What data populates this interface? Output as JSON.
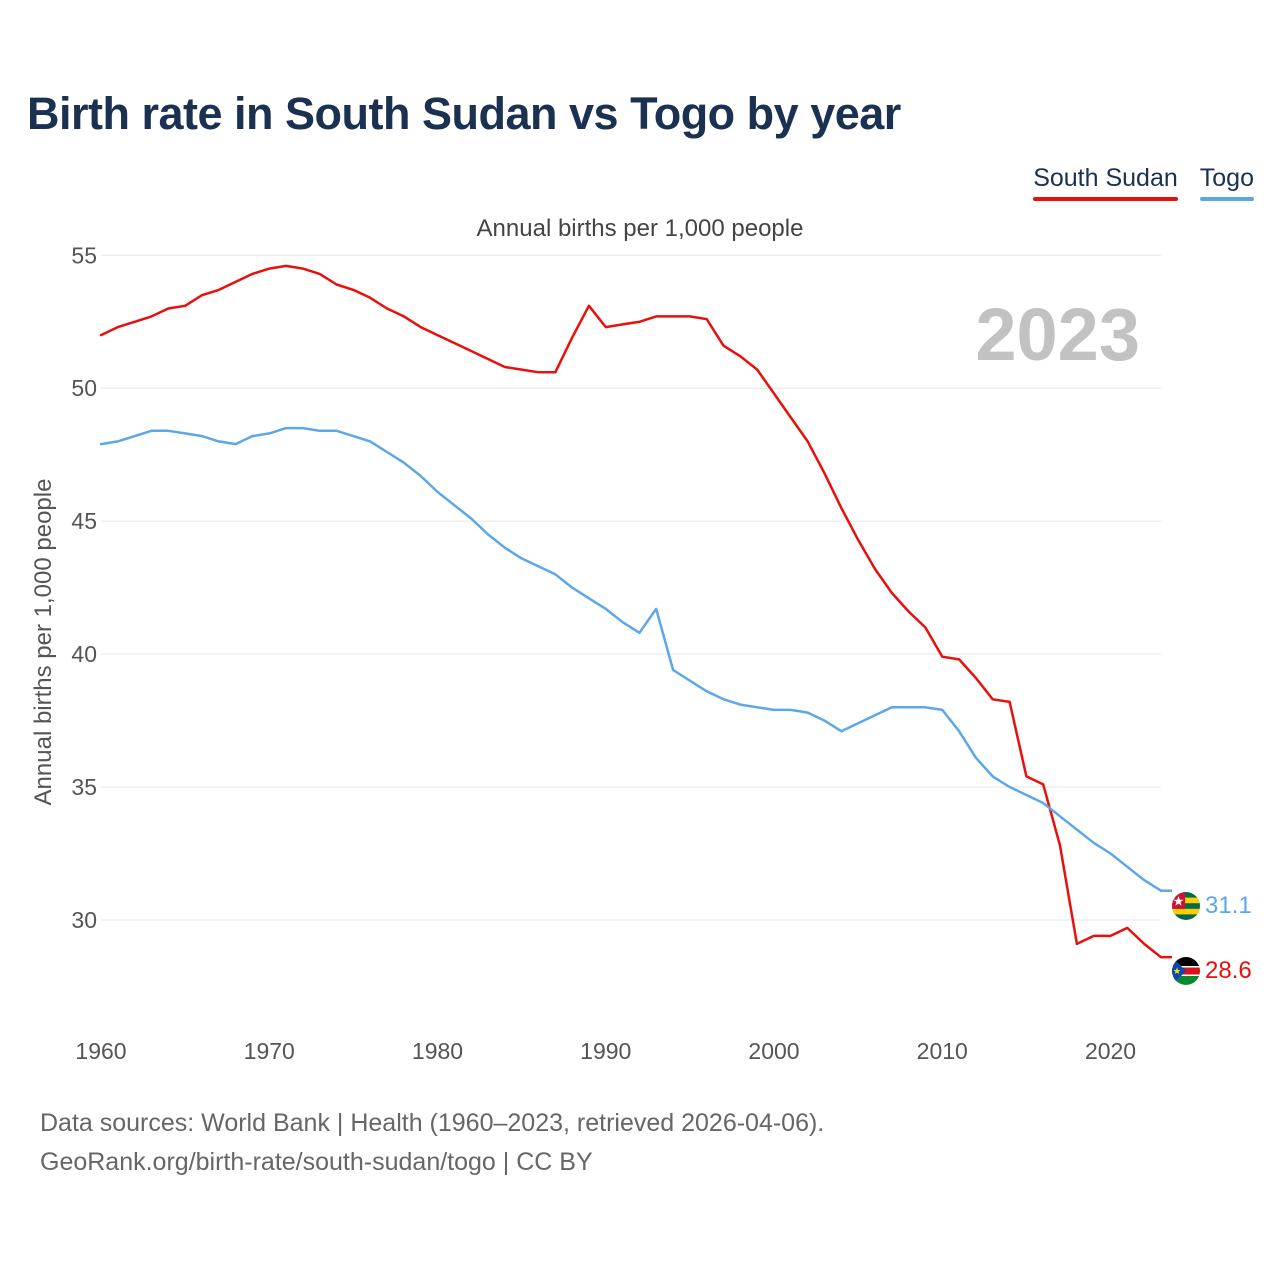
{
  "title": "Birth rate in South Sudan vs Togo by year",
  "legend": {
    "items": [
      {
        "label": "South Sudan",
        "color": "#e8100c"
      },
      {
        "label": "Togo",
        "color": "#5da7e8"
      }
    ]
  },
  "footer": {
    "line1": "Data sources: World Bank | Health (1960–2023, retrieved 2026-04-06).",
    "line2": "GeoRank.org/birth-rate/south-sudan/togo | CC BY"
  },
  "chart_data": {
    "type": "line",
    "title": "Birth rate in South Sudan vs Togo by year",
    "subtitle": "Annual births per 1,000 people",
    "xlabel": "",
    "ylabel": "Annual births per 1,000 people",
    "year_watermark": "2023",
    "xlim": [
      1960,
      2023
    ],
    "ylim": [
      26.5,
      55.5
    ],
    "xticks": [
      1960,
      1970,
      1980,
      1990,
      2000,
      2010,
      2020
    ],
    "yticks": [
      30,
      35,
      40,
      45,
      50,
      55
    ],
    "grid": true,
    "legend_position": "top-right",
    "x": [
      1960,
      1961,
      1962,
      1963,
      1964,
      1965,
      1966,
      1967,
      1968,
      1969,
      1970,
      1971,
      1972,
      1973,
      1974,
      1975,
      1976,
      1977,
      1978,
      1979,
      1980,
      1981,
      1982,
      1983,
      1984,
      1985,
      1986,
      1987,
      1988,
      1989,
      1990,
      1991,
      1992,
      1993,
      1994,
      1995,
      1996,
      1997,
      1998,
      1999,
      2000,
      2001,
      2002,
      2003,
      2004,
      2005,
      2006,
      2007,
      2008,
      2009,
      2010,
      2011,
      2012,
      2013,
      2014,
      2015,
      2016,
      2017,
      2018,
      2019,
      2020,
      2021,
      2022,
      2023
    ],
    "series": [
      {
        "name": "South Sudan",
        "color": "#e8100c",
        "end_label": "28.6",
        "values": [
          52.0,
          52.3,
          52.5,
          52.7,
          53.0,
          53.1,
          53.5,
          53.7,
          54.0,
          54.3,
          54.5,
          54.6,
          54.5,
          54.3,
          53.9,
          53.7,
          53.4,
          53.0,
          52.7,
          52.3,
          52.0,
          51.7,
          51.4,
          51.1,
          50.8,
          50.7,
          50.6,
          50.6,
          51.9,
          53.1,
          52.3,
          52.4,
          52.5,
          52.7,
          52.7,
          52.7,
          52.6,
          51.6,
          51.2,
          50.7,
          49.8,
          48.9,
          48.0,
          46.8,
          45.5,
          44.3,
          43.2,
          42.3,
          41.6,
          41.0,
          39.9,
          39.8,
          39.1,
          38.3,
          38.2,
          35.4,
          35.1,
          32.8,
          29.1,
          29.4,
          29.4,
          29.7,
          29.1,
          28.6
        ]
      },
      {
        "name": "Togo",
        "color": "#5da7e8",
        "end_label": "31.1",
        "values": [
          47.9,
          48.0,
          48.2,
          48.4,
          48.4,
          48.3,
          48.2,
          48.0,
          47.9,
          48.2,
          48.3,
          48.5,
          48.5,
          48.4,
          48.4,
          48.2,
          48.0,
          47.6,
          47.2,
          46.7,
          46.1,
          45.6,
          45.1,
          44.5,
          44.0,
          43.6,
          43.3,
          43.0,
          42.5,
          42.1,
          41.7,
          41.2,
          40.8,
          41.7,
          39.4,
          39.0,
          38.6,
          38.3,
          38.1,
          38.0,
          37.9,
          37.9,
          37.8,
          37.5,
          37.1,
          37.4,
          37.7,
          38.0,
          38.0,
          38.0,
          37.9,
          37.1,
          36.1,
          35.4,
          35.0,
          34.7,
          34.4,
          33.9,
          33.4,
          32.9,
          32.5,
          32.0,
          31.5,
          31.1
        ]
      }
    ]
  }
}
